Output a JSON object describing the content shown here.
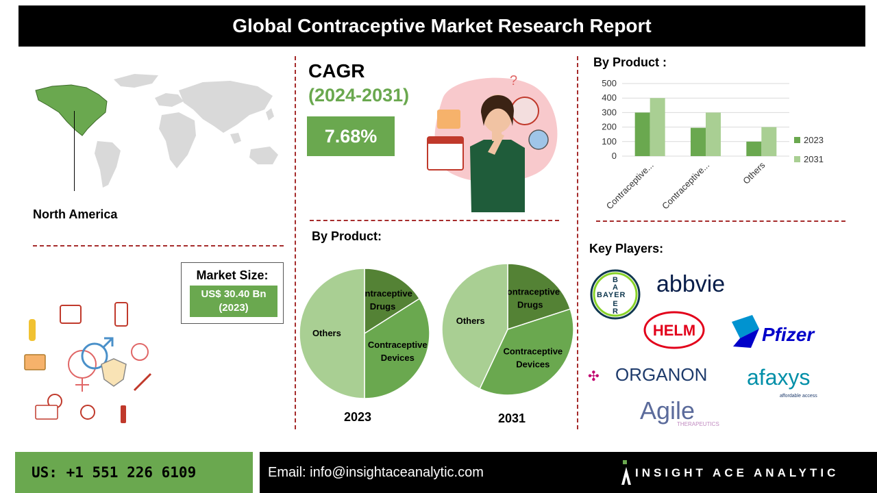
{
  "header": {
    "title": "Global Contraceptive Market Research Report"
  },
  "region": {
    "label": "North America"
  },
  "cagr": {
    "title": "CAGR",
    "period": "(2024-2031)",
    "value": "7.68%"
  },
  "market": {
    "title": "Market Size:",
    "value": "US$ 30.40 Bn",
    "year": "(2023)"
  },
  "pie_section": {
    "title": "By Product:"
  },
  "bar_section": {
    "title": "By Product :"
  },
  "players": {
    "title": "Key Players:",
    "bayer": [
      "B",
      "A",
      "Y",
      "E",
      "R"
    ],
    "abbvie": "abbvie",
    "helm": "HELM",
    "pfizer": "Pfizer",
    "organon": "ORGANON",
    "afaxys": "afaxys",
    "afaxys_tag": "affordable access",
    "agile": "Agile",
    "agile_tag": "THERAPEUTICS"
  },
  "footer": {
    "phone": "US: +1 551 226 6109",
    "email": "Email: info@insightaceanalytic.com",
    "brand": "INSIGHT ACE ANALYTIC"
  },
  "colors": {
    "accent": "#6aa84f",
    "light_green": "#a9cf93",
    "dark_green": "#548235",
    "dash": "#a52a2a"
  },
  "chart_data": [
    {
      "type": "bar",
      "categories": [
        "Contraceptive...",
        "Contraceptive...",
        "Others"
      ],
      "series": [
        {
          "name": "2023",
          "values": [
            300,
            195,
            100
          ]
        },
        {
          "name": "2031",
          "values": [
            400,
            300,
            200
          ]
        }
      ],
      "yticks": [
        "500",
        "400",
        "300",
        "200",
        "100",
        "0"
      ],
      "ylim": [
        0,
        500
      ],
      "grid": true,
      "legend": "right"
    },
    {
      "type": "pie",
      "label": "2023",
      "slices": [
        {
          "name_lines": [
            "Contraceptive",
            "Drugs"
          ],
          "value": 16
        },
        {
          "name_lines": [
            "Contraceptive",
            "Devices"
          ],
          "value": 34
        },
        {
          "name_lines": [
            "Others"
          ],
          "value": 50
        }
      ]
    },
    {
      "type": "pie",
      "label": "2031",
      "slices": [
        {
          "name_lines": [
            "Contraceptive",
            "Drugs"
          ],
          "value": 20
        },
        {
          "name_lines": [
            "Contraceptive",
            "Devices"
          ],
          "value": 37
        },
        {
          "name_lines": [
            "Others"
          ],
          "value": 43
        }
      ]
    }
  ]
}
